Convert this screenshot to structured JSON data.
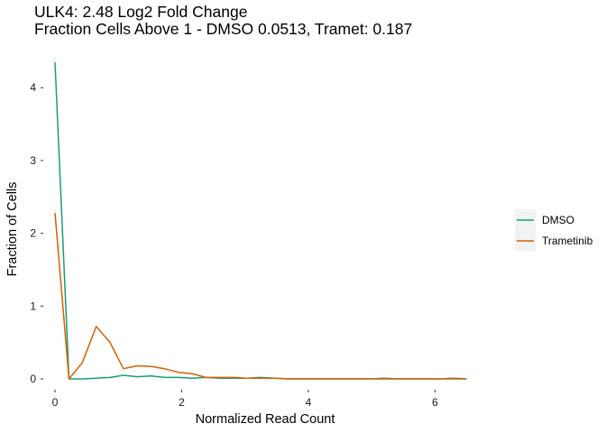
{
  "chart_data": {
    "type": "line",
    "title": "ULK4: 2.48 Log2 Fold Change",
    "subtitle": "Fraction Cells Above 1 - DMSO 0.0513, Tramet: 0.187",
    "xlabel": "Normalized Read Count",
    "ylabel": "Fraction of Cells",
    "xlim": [
      0,
      6.5
    ],
    "ylim": [
      0,
      4.35
    ],
    "xticks": [
      0,
      2,
      4,
      6
    ],
    "yticks": [
      0,
      1,
      2,
      3,
      4
    ],
    "grid": false,
    "legend_position": "right",
    "series": [
      {
        "name": "DMSO",
        "color": "#1b9e77",
        "x": [
          0,
          0.22,
          0.43,
          0.65,
          0.87,
          1.08,
          1.3,
          1.52,
          1.73,
          1.95,
          2.17,
          2.38,
          2.6,
          2.82,
          3.03,
          3.25,
          3.47,
          3.68,
          3.9,
          4.12,
          4.33,
          4.55,
          4.77,
          4.98,
          5.2,
          5.42,
          5.63,
          5.85,
          6.07,
          6.28,
          6.5
        ],
        "y": [
          4.35,
          0.0,
          0.0,
          0.01,
          0.02,
          0.05,
          0.03,
          0.04,
          0.02,
          0.02,
          0.01,
          0.02,
          0.01,
          0.01,
          0.01,
          0.02,
          0.01,
          0.0,
          0.0,
          0.0,
          0.0,
          0.0,
          0.0,
          0.0,
          0.0,
          0.0,
          0.0,
          0.0,
          0.0,
          0.0,
          0.0
        ]
      },
      {
        "name": "Trametinib",
        "color": "#d95f02",
        "x": [
          0,
          0.22,
          0.43,
          0.65,
          0.87,
          1.08,
          1.3,
          1.52,
          1.73,
          1.95,
          2.17,
          2.38,
          2.6,
          2.82,
          3.03,
          3.25,
          3.47,
          3.68,
          3.9,
          4.12,
          4.33,
          4.55,
          4.77,
          4.98,
          5.2,
          5.42,
          5.63,
          5.85,
          6.07,
          6.28,
          6.5
        ],
        "y": [
          2.28,
          0.0,
          0.22,
          0.72,
          0.5,
          0.14,
          0.18,
          0.17,
          0.14,
          0.09,
          0.07,
          0.02,
          0.02,
          0.02,
          0.01,
          0.01,
          0.01,
          0.0,
          0.0,
          0.0,
          0.0,
          0.0,
          0.0,
          0.0,
          0.01,
          0.0,
          0.0,
          0.0,
          0.0,
          0.01,
          0.0
        ]
      }
    ]
  }
}
